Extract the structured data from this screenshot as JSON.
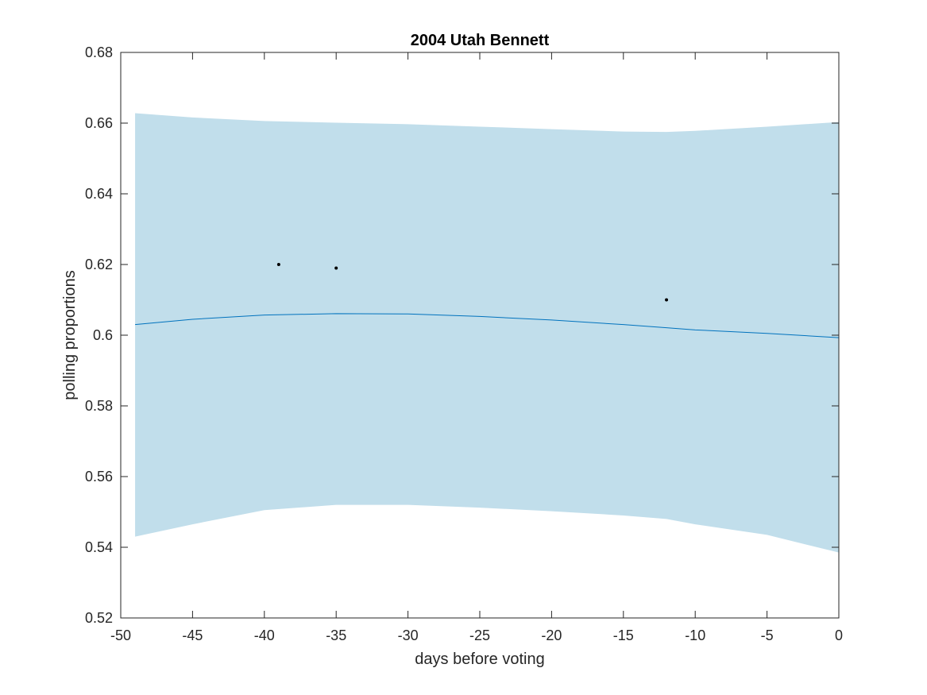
{
  "chart_data": {
    "type": "line",
    "title": "2004 Utah Bennett",
    "xlabel": "days before voting",
    "ylabel": "polling proportions",
    "xlim": [
      -50,
      0
    ],
    "ylim": [
      0.52,
      0.68
    ],
    "xticks": [
      -50,
      -45,
      -40,
      -35,
      -30,
      -25,
      -20,
      -15,
      -10,
      -5,
      0
    ],
    "yticks": [
      0.52,
      0.54,
      0.56,
      0.58,
      0.6,
      0.62,
      0.64,
      0.66,
      0.68
    ],
    "xtick_labels": [
      "-50",
      "-45",
      "-40",
      "-35",
      "-30",
      "-25",
      "-20",
      "-15",
      "-10",
      "-5",
      "0"
    ],
    "ytick_labels": [
      "0.52",
      "0.54",
      "0.56",
      "0.58",
      "0.6",
      "0.62",
      "0.64",
      "0.66",
      "0.68"
    ],
    "grid": false,
    "colors": {
      "band": "#c1deeb",
      "line": "#0072bd",
      "points": "#000000"
    },
    "band": {
      "x": [
        -49,
        -45,
        -40,
        -35,
        -30,
        -25,
        -20,
        -15,
        -12,
        -10,
        -5,
        0
      ],
      "lower": [
        0.543,
        0.5465,
        0.5505,
        0.552,
        0.552,
        0.5512,
        0.5502,
        0.549,
        0.548,
        0.5465,
        0.5435,
        0.5385
      ],
      "upper": [
        0.6628,
        0.6616,
        0.6606,
        0.6601,
        0.6597,
        0.659,
        0.6583,
        0.6576,
        0.6575,
        0.6578,
        0.659,
        0.6603
      ]
    },
    "series": [
      {
        "x": [
          -49,
          -45,
          -40,
          -35,
          -30,
          -25,
          -20,
          -15,
          -12,
          -10,
          -5,
          0
        ],
        "values": [
          0.603,
          0.6045,
          0.6057,
          0.6061,
          0.606,
          0.6053,
          0.6043,
          0.603,
          0.6021,
          0.6015,
          0.6005,
          0.5993
        ]
      }
    ],
    "points": {
      "x": [
        -39,
        -35,
        -12
      ],
      "y": [
        0.62,
        0.619,
        0.61
      ]
    }
  }
}
